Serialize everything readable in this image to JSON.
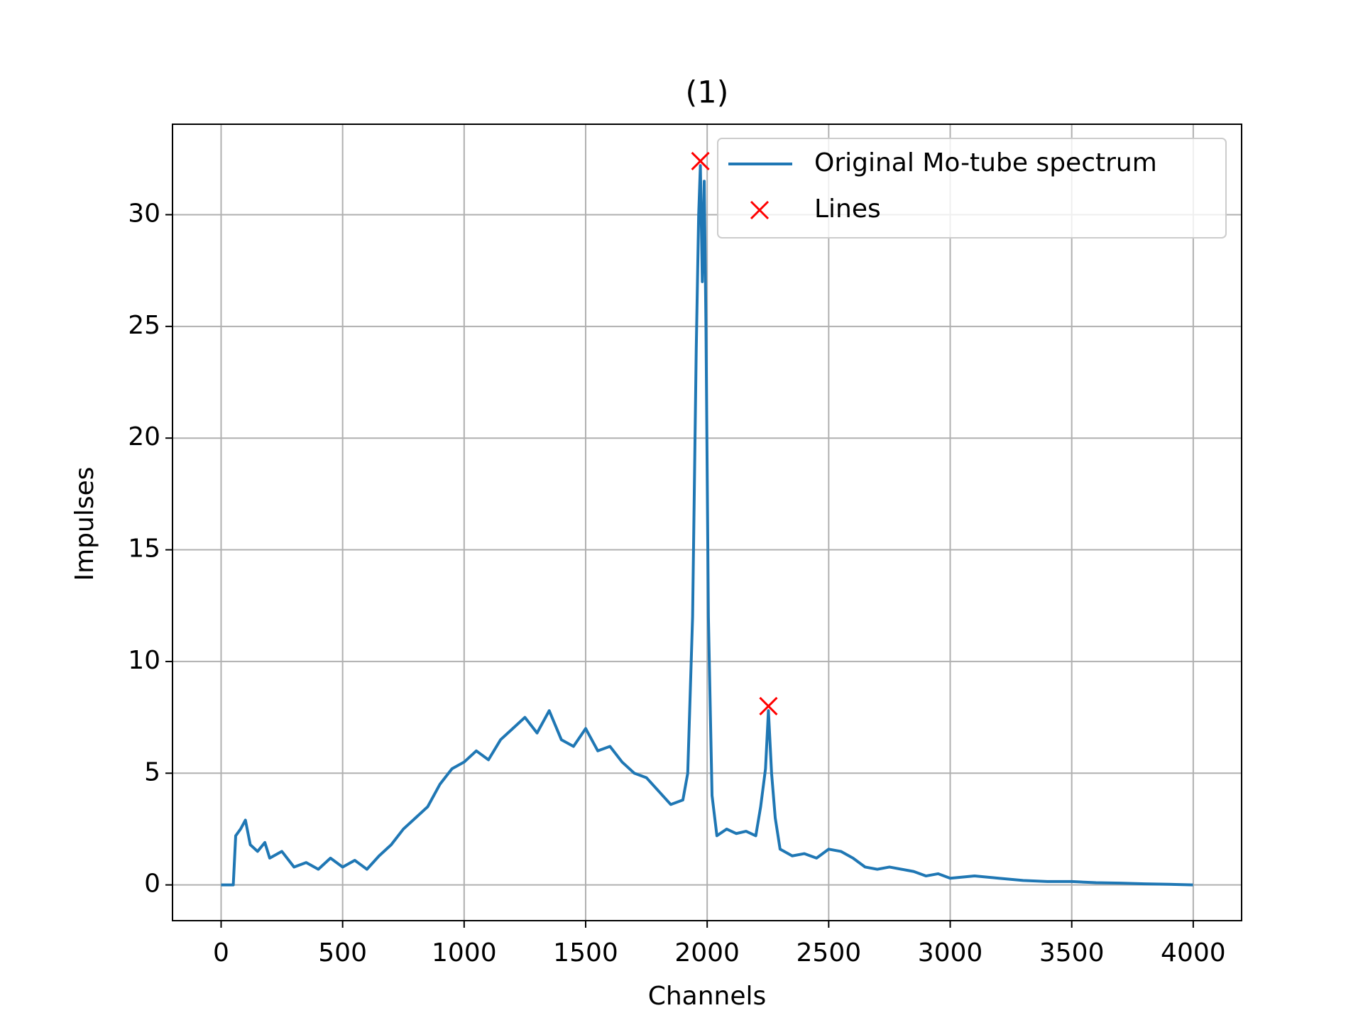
{
  "chart_data": {
    "type": "line",
    "title": "(1)",
    "xlabel": "Channels",
    "ylabel": "Impulses",
    "xlim": [
      -200,
      4199
    ],
    "ylim": [
      -1.6,
      34.05
    ],
    "xticks": [
      0,
      500,
      1000,
      1500,
      2000,
      2500,
      3000,
      3500,
      4000
    ],
    "yticks": [
      0,
      5,
      10,
      15,
      20,
      25,
      30
    ],
    "grid": true,
    "legend": "upper right",
    "series": [
      {
        "name": "Original Mo-tube spectrum",
        "color": "#1f77b4",
        "x": [
          0,
          50,
          60,
          80,
          100,
          120,
          150,
          180,
          200,
          250,
          300,
          350,
          400,
          450,
          500,
          550,
          600,
          650,
          700,
          750,
          800,
          850,
          900,
          950,
          1000,
          1050,
          1100,
          1150,
          1200,
          1250,
          1300,
          1350,
          1400,
          1450,
          1500,
          1550,
          1600,
          1650,
          1700,
          1750,
          1800,
          1850,
          1900,
          1920,
          1940,
          1955,
          1965,
          1972,
          1980,
          1988,
          1995,
          2005,
          2020,
          2040,
          2080,
          2120,
          2160,
          2200,
          2220,
          2240,
          2252,
          2265,
          2280,
          2300,
          2350,
          2400,
          2450,
          2500,
          2550,
          2600,
          2650,
          2700,
          2750,
          2800,
          2850,
          2900,
          2950,
          3000,
          3100,
          3200,
          3300,
          3400,
          3500,
          3600,
          3700,
          3800,
          3900,
          3999
        ],
        "values": [
          0,
          0,
          2.2,
          2.5,
          2.9,
          1.8,
          1.5,
          1.9,
          1.2,
          1.5,
          0.8,
          1.0,
          0.7,
          1.2,
          0.8,
          1.1,
          0.7,
          1.3,
          1.8,
          2.5,
          3.0,
          3.5,
          4.5,
          5.2,
          5.5,
          6.0,
          5.6,
          6.5,
          7.0,
          7.5,
          6.8,
          7.8,
          6.5,
          6.2,
          7.0,
          6.0,
          6.2,
          5.5,
          5.0,
          4.8,
          4.2,
          3.6,
          3.8,
          5.0,
          12,
          24,
          30,
          32.2,
          27,
          31.5,
          25,
          12,
          4,
          2.2,
          2.5,
          2.3,
          2.4,
          2.2,
          3.5,
          5.2,
          7.8,
          5.0,
          3.0,
          1.6,
          1.3,
          1.4,
          1.2,
          1.6,
          1.5,
          1.2,
          0.8,
          0.7,
          0.8,
          0.7,
          0.6,
          0.4,
          0.5,
          0.3,
          0.4,
          0.3,
          0.2,
          0.15,
          0.15,
          0.1,
          0.08,
          0.05,
          0.03,
          0.0
        ]
      },
      {
        "name": "Lines",
        "color": "#ff0000",
        "marker": "x",
        "x": [
          1972,
          2252
        ],
        "values": [
          32.4,
          8.0
        ]
      }
    ]
  }
}
